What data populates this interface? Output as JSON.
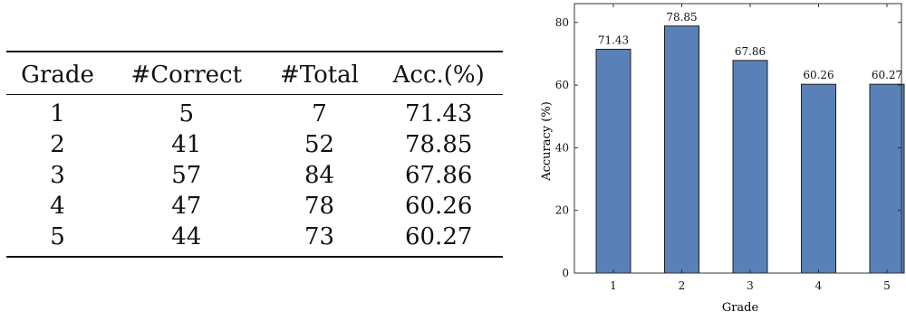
{
  "table": {
    "headers": [
      "Grade",
      "#Correct",
      "#Total",
      "Acc.(%)"
    ],
    "rows": [
      [
        "1",
        "5",
        "7",
        "71.43"
      ],
      [
        "2",
        "41",
        "52",
        "78.85"
      ],
      [
        "3",
        "57",
        "84",
        "67.86"
      ],
      [
        "4",
        "47",
        "78",
        "60.26"
      ],
      [
        "5",
        "44",
        "73",
        "60.27"
      ]
    ]
  },
  "chart_data": {
    "type": "bar",
    "categories": [
      "1",
      "2",
      "3",
      "4",
      "5"
    ],
    "values": [
      71.43,
      78.85,
      67.86,
      60.26,
      60.27
    ],
    "data_labels": [
      "71.43",
      "78.85",
      "67.86",
      "60.26",
      "60.27"
    ],
    "xlabel": "Grade",
    "ylabel": "Accuracy (%)",
    "ylim": [
      0,
      86
    ],
    "yticks": [
      0,
      20,
      40,
      60,
      80
    ],
    "grid": false,
    "bar_color": "#5a80b8",
    "bar_edge_color": "#1f1f1f"
  }
}
